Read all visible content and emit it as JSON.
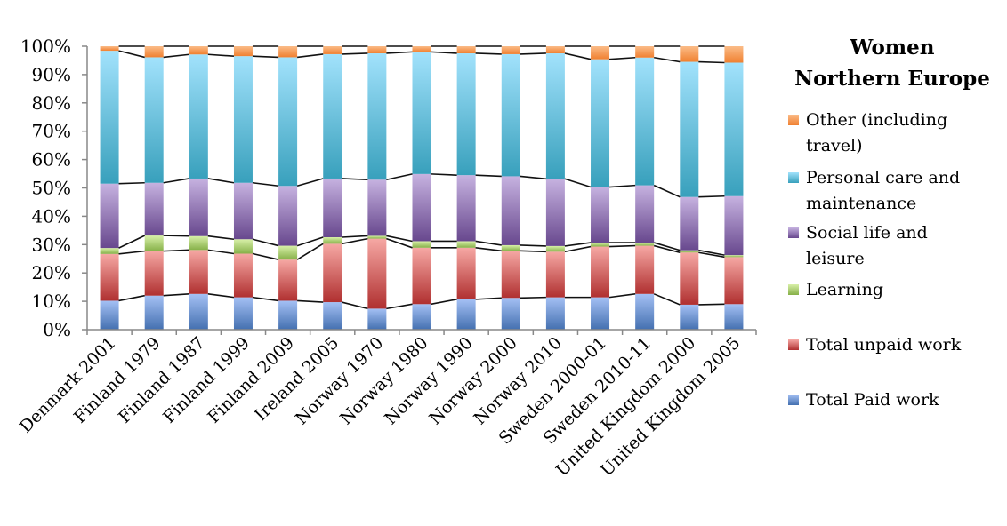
{
  "chart_data": {
    "type": "bar",
    "stacked": "percent",
    "title": "Women Northern Europe",
    "xlabel": "",
    "ylabel": "",
    "ylim": [
      0,
      100
    ],
    "yticks": [
      "0%",
      "10%",
      "20%",
      "30%",
      "40%",
      "50%",
      "60%",
      "70%",
      "80%",
      "90%",
      "100%"
    ],
    "legend_position": "right",
    "categories": [
      "Denmark 2001",
      "Finland 1979",
      "Finland 1987",
      "Finland 1999",
      "Finland 2009",
      "Ireland 2005",
      "Norway 1970",
      "Norway 1980",
      "Norway 1990",
      "Norway 2000",
      "Norway 2010",
      "Sweden 2000-01",
      "Sweden 2010-11",
      "United Kingdom 2000",
      "United Kingdom 2005"
    ],
    "series": [
      {
        "name": "Total Paid work",
        "color_top": "#a4c0f4",
        "color": "#4470b0",
        "values": [
          10.2,
          12.0,
          12.6,
          11.4,
          10.2,
          9.7,
          7.4,
          9.0,
          10.7,
          11.2,
          11.4,
          11.4,
          12.6,
          8.8,
          9.0
        ]
      },
      {
        "name": "Total unpaid work",
        "color_top": "#f6a8a4",
        "color": "#b03030",
        "values": [
          16.5,
          15.7,
          15.5,
          15.4,
          14.5,
          20.6,
          24.7,
          19.9,
          18.2,
          16.6,
          16.1,
          17.9,
          17.0,
          18.4,
          16.6
        ]
      },
      {
        "name": "Learning",
        "color_top": "#d8f0a8",
        "color": "#86b048",
        "values": [
          2.1,
          5.5,
          4.9,
          5.1,
          4.9,
          2.3,
          1.0,
          2.3,
          2.3,
          2.0,
          2.0,
          1.4,
          1.1,
          0.8,
          0.7
        ]
      },
      {
        "name": "Social life and\nleisure",
        "color_top": "#c6b2e0",
        "color": "#68488e",
        "values": [
          22.7,
          18.6,
          20.3,
          19.9,
          21.1,
          20.7,
          19.8,
          23.7,
          23.3,
          24.3,
          23.7,
          19.6,
          20.2,
          18.8,
          20.8
        ]
      },
      {
        "name": "Personal care and\nmaintenance",
        "color_top": "#a2e2fc",
        "color": "#38a0bc",
        "values": [
          46.9,
          44.3,
          43.8,
          44.7,
          45.4,
          43.9,
          44.6,
          43.1,
          43.0,
          43.1,
          44.3,
          45.1,
          45.1,
          47.7,
          47.1
        ]
      },
      {
        "name": "Other (including\ntravel)",
        "color_top": "#fbbc88",
        "color": "#f08030",
        "values": [
          1.6,
          3.9,
          2.9,
          3.5,
          3.9,
          2.8,
          2.5,
          2.0,
          2.5,
          2.8,
          2.5,
          4.6,
          4.0,
          5.5,
          5.8
        ]
      }
    ]
  },
  "legend": {
    "title_line1": "Women",
    "title_line2": "Northern Europe"
  }
}
